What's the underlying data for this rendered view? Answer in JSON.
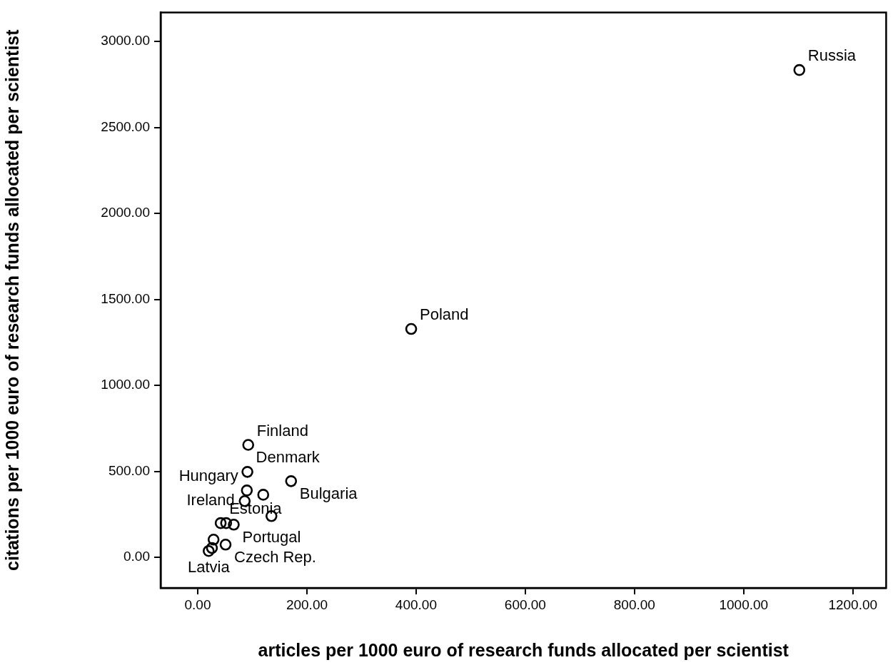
{
  "chart_data": {
    "type": "scatter",
    "xlabel": "articles per 1000 euro of research funds allocated per scientist",
    "ylabel": "citations per 1000 euro of research funds allocated per scientist",
    "x": [
      1102,
      391,
      92.5,
      91,
      171,
      90,
      120,
      86,
      135,
      42,
      52,
      66,
      29,
      51,
      26,
      20
    ],
    "values": [
      2834,
      1328,
      654,
      497,
      443,
      389,
      364,
      327,
      240,
      199,
      199,
      190,
      103,
      74,
      54,
      37
    ],
    "color": "#000000",
    "marker": "circle",
    "grid": false,
    "legend": false,
    "xlim": [
      -68,
      1261
    ],
    "ylim": [
      -178,
      3169
    ],
    "xticks": [
      {
        "value": 0,
        "label": "0.00"
      },
      {
        "value": 200,
        "label": "200.00"
      },
      {
        "value": 400,
        "label": "400.00"
      },
      {
        "value": 600,
        "label": "600.00"
      },
      {
        "value": 800,
        "label": "800.00"
      },
      {
        "value": 1000,
        "label": "1000.00"
      },
      {
        "value": 1200,
        "label": "1200.00"
      }
    ],
    "yticks": [
      {
        "value": 0,
        "label": "0.00"
      },
      {
        "value": 500,
        "label": "500.00"
      },
      {
        "value": 1000,
        "label": "1000.00"
      },
      {
        "value": 1500,
        "label": "1500.00"
      },
      {
        "value": 2000,
        "label": "2000.00"
      },
      {
        "value": 2500,
        "label": "2500.00"
      },
      {
        "value": 3000,
        "label": "3000.00"
      }
    ],
    "annotations": [
      {
        "text": "Russia",
        "x": 1102,
        "y": 2834
      },
      {
        "text": "Poland",
        "x": 391,
        "y": 1328
      },
      {
        "text": "Finland",
        "x": 92.5,
        "y": 654
      },
      {
        "text": "Denmark",
        "x": 91,
        "y": 497
      },
      {
        "text": "Hungary",
        "x": 90,
        "y": 389
      },
      {
        "text": "Ireland",
        "x": 86,
        "y": 327
      },
      {
        "text": "Bulgaria",
        "x": 171,
        "y": 443
      },
      {
        "text": "Estonia",
        "x": 42,
        "y": 199
      },
      {
        "text": "Portugal",
        "x": 66,
        "y": 190
      },
      {
        "text": "Czech Rep.",
        "x": 51,
        "y": 74
      },
      {
        "text": "Latvia",
        "x": 20,
        "y": 37
      }
    ]
  }
}
